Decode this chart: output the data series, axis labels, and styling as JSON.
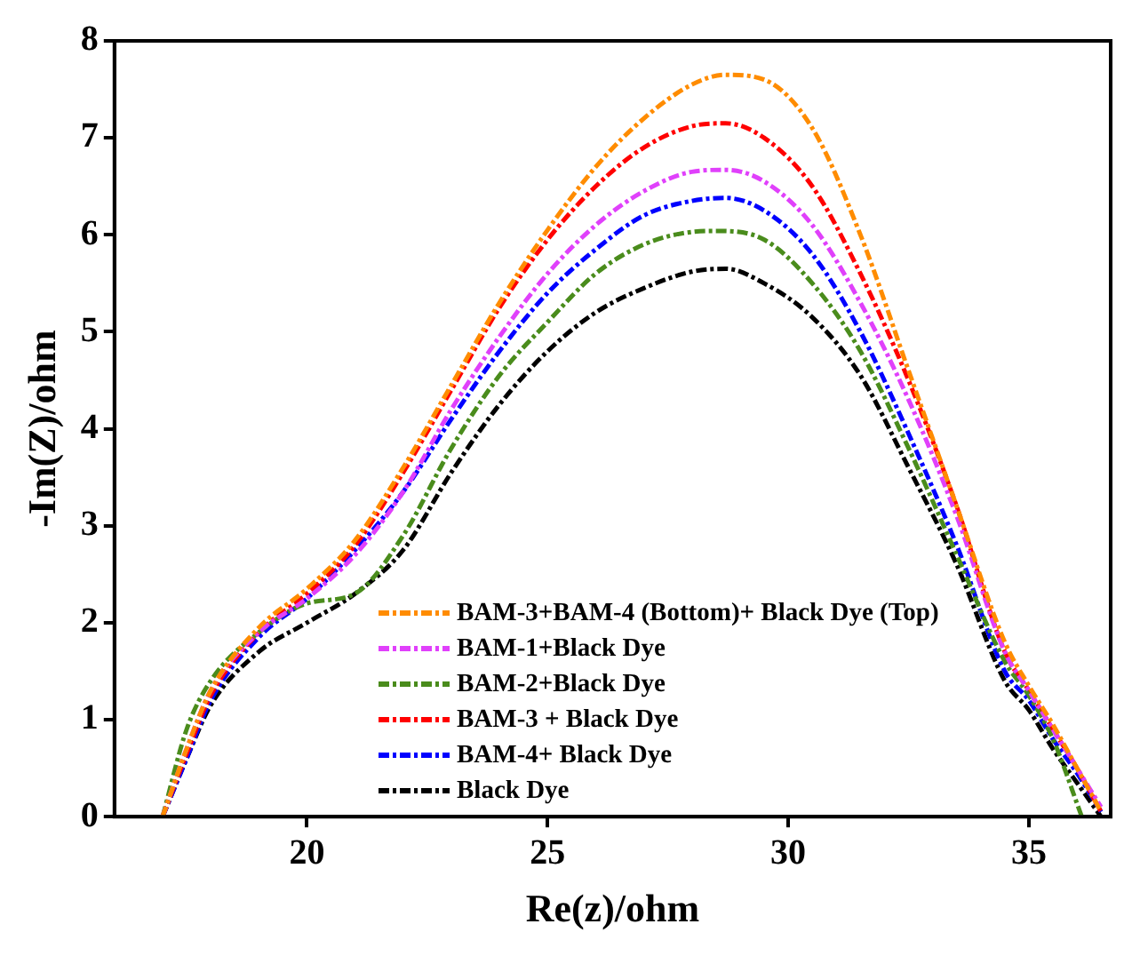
{
  "chart_data": {
    "type": "line",
    "xlabel": "Re(z)/ohm",
    "ylabel": "-Im(Z)/ohm",
    "x": [
      17,
      17.5,
      18,
      19,
      20,
      21,
      22,
      23,
      24,
      25,
      26,
      27,
      28,
      28.7,
      29.5,
      30.5,
      31.5,
      32.5,
      33.5,
      34.5,
      35,
      35.5,
      36,
      36.5
    ],
    "series": [
      {
        "name": "BAM-3+BAM-4 (Bottom)+ Black Dye (Top)",
        "color": "#ff8c00",
        "values": [
          0,
          0.7,
          1.3,
          1.95,
          2.35,
          2.85,
          3.6,
          4.45,
          5.3,
          6.05,
          6.7,
          7.2,
          7.55,
          7.65,
          7.6,
          7.1,
          6.0,
          4.6,
          3.2,
          1.8,
          1.35,
          0.95,
          0.5,
          0.05
        ]
      },
      {
        "name": "BAM-1+Black Dye",
        "color": "#e040fb",
        "values": [
          0,
          0.7,
          1.3,
          1.9,
          2.25,
          2.7,
          3.35,
          4.2,
          4.95,
          5.6,
          6.1,
          6.45,
          6.65,
          6.67,
          6.55,
          6.1,
          5.3,
          4.3,
          3.1,
          1.7,
          1.3,
          0.9,
          0.5,
          0.1
        ]
      },
      {
        "name": "BAM-2+Black Dye",
        "color": "#4a8c1c",
        "x": [
          17,
          17.5,
          18,
          19,
          20,
          21,
          22,
          23,
          24,
          25,
          26,
          27,
          28,
          28.5,
          29.5,
          30.5,
          31.5,
          32.5,
          33.5,
          34.5,
          35,
          35.5,
          36.1
        ],
        "values": [
          0,
          0.9,
          1.4,
          1.9,
          2.2,
          2.3,
          2.9,
          3.8,
          4.55,
          5.1,
          5.6,
          5.9,
          6.03,
          6.04,
          5.95,
          5.5,
          4.8,
          3.8,
          2.7,
          1.6,
          1.25,
          0.8,
          0
        ]
      },
      {
        "name": "BAM-3 + Black Dye",
        "color": "#ff0000",
        "values": [
          0,
          0.65,
          1.25,
          1.9,
          2.3,
          2.8,
          3.55,
          4.4,
          5.25,
          5.95,
          6.5,
          6.9,
          7.12,
          7.15,
          7.0,
          6.5,
          5.6,
          4.5,
          3.2,
          1.7,
          1.3,
          0.9,
          0.5,
          0.05
        ]
      },
      {
        "name": "BAM-4+ Black Dye",
        "color": "#0000ff",
        "values": [
          0,
          0.6,
          1.2,
          1.85,
          2.25,
          2.75,
          3.35,
          4.1,
          4.8,
          5.4,
          5.85,
          6.2,
          6.35,
          6.38,
          6.25,
          5.8,
          5.0,
          3.95,
          2.8,
          1.5,
          1.2,
          0.8,
          0.45,
          0.05
        ]
      },
      {
        "name": "Black Dye",
        "color": "#000000",
        "values": [
          0,
          0.6,
          1.15,
          1.7,
          2.0,
          2.3,
          2.75,
          3.55,
          4.25,
          4.8,
          5.2,
          5.45,
          5.62,
          5.65,
          5.5,
          5.15,
          4.55,
          3.6,
          2.6,
          1.4,
          1.1,
          0.7,
          0.35,
          0
        ]
      }
    ],
    "xlim": [
      16,
      36.7
    ],
    "xticks": [
      20,
      25,
      30,
      35
    ],
    "ylim": [
      0,
      8
    ],
    "yticks": [
      0,
      1,
      2,
      3,
      4,
      5,
      6,
      7,
      8
    ],
    "grid": false,
    "legend": "bottom",
    "line_style": "dashed",
    "marker": "none"
  }
}
